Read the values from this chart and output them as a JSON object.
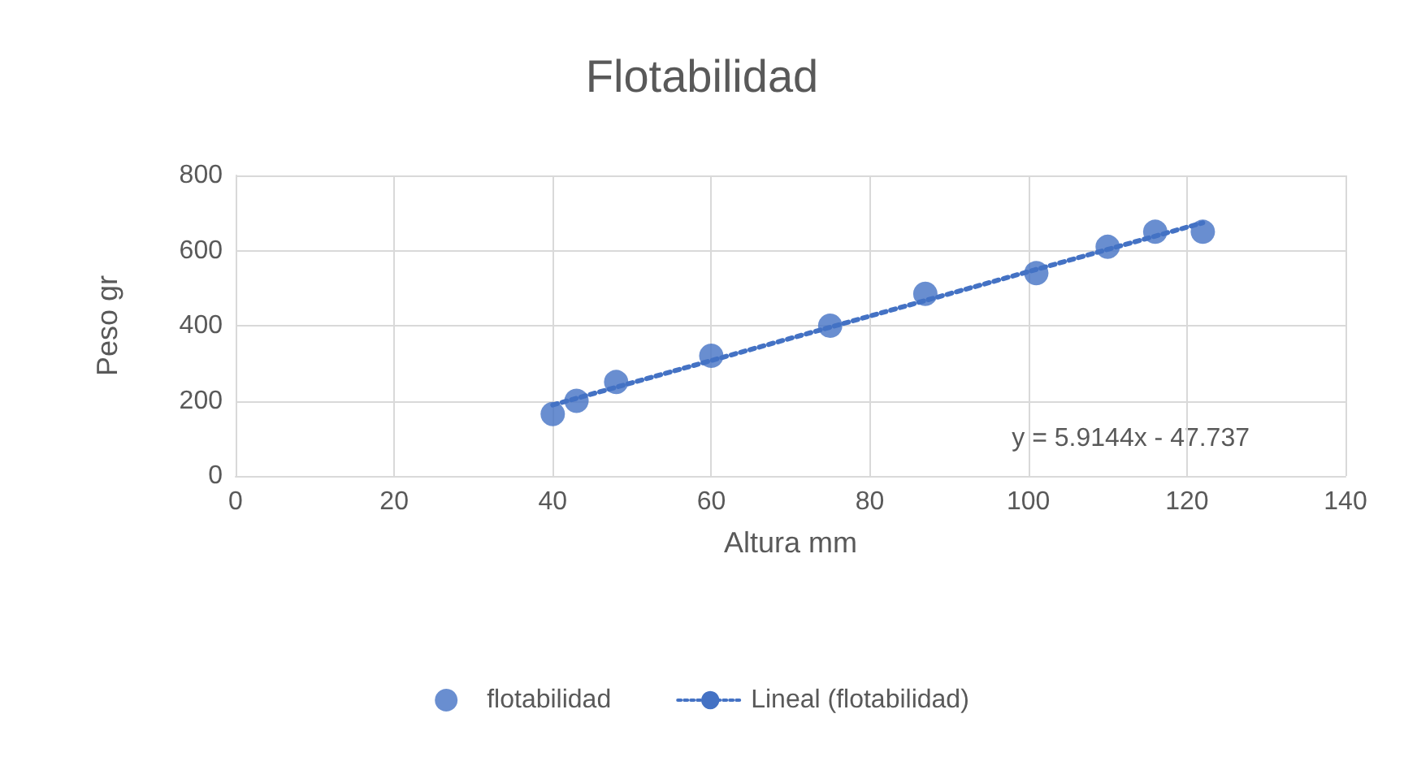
{
  "chart_data": {
    "type": "scatter",
    "title": "Flotabilidad",
    "xlabel": "Altura mm",
    "ylabel": "Peso gr",
    "xlim": [
      0,
      140
    ],
    "xticks": [
      0,
      20,
      40,
      60,
      80,
      100,
      120,
      140
    ],
    "ylim": [
      0,
      800
    ],
    "yticks": [
      0,
      200,
      400,
      600,
      800
    ],
    "grid": true,
    "legend": "bottom",
    "marker": "circle",
    "annotations": [
      "y = 5.9144x - 47.737"
    ],
    "series": [
      {
        "name": "flotabilidad",
        "type": "scatter",
        "color": "#4472c4",
        "x": [
          40,
          43,
          48,
          60,
          75,
          87,
          101,
          110,
          116,
          122
        ],
        "values": [
          165,
          200,
          250,
          320,
          400,
          485,
          540,
          610,
          650,
          650
        ]
      },
      {
        "name": "Lineal (flotabilidad)",
        "type": "line",
        "color": "#4472c4",
        "line_style": "dotted",
        "marker": "none",
        "x": [
          40,
          122
        ],
        "values": [
          189,
          674
        ]
      }
    ]
  }
}
